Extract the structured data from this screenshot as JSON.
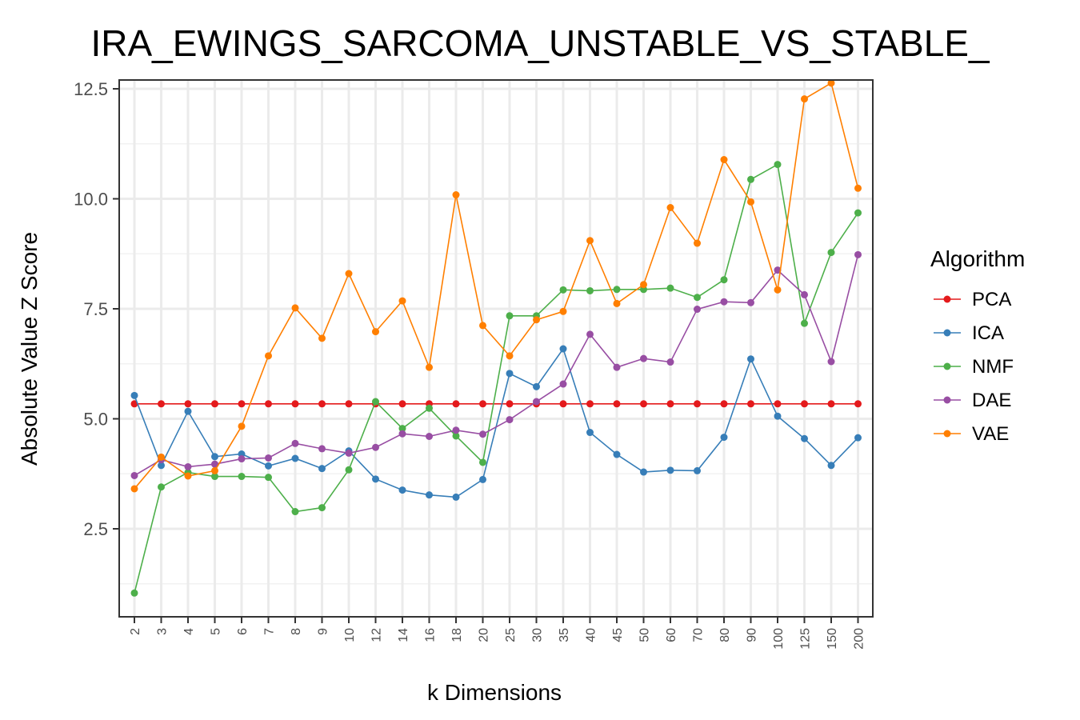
{
  "chart_data": {
    "type": "line",
    "title": "IRA_EWINGS_SARCOMA_UNSTABLE_VS_STABLE_",
    "xlabel": "k Dimensions",
    "ylabel": "Absolute Value Z Score",
    "categories": [
      "2",
      "3",
      "4",
      "5",
      "6",
      "7",
      "8",
      "9",
      "10",
      "12",
      "14",
      "16",
      "18",
      "20",
      "25",
      "30",
      "35",
      "40",
      "45",
      "50",
      "60",
      "70",
      "80",
      "90",
      "100",
      "125",
      "150",
      "200"
    ],
    "yticks": [
      "2.5",
      "5.0",
      "7.5",
      "10.0",
      "12.5"
    ],
    "ylim": [
      0.5,
      12.7
    ],
    "grid": true,
    "legend": {
      "title": "Algorithm",
      "position": "right"
    },
    "series": [
      {
        "name": "PCA",
        "color": "#e41a1c",
        "values": [
          5.34,
          5.34,
          5.34,
          5.34,
          5.34,
          5.34,
          5.34,
          5.34,
          5.34,
          5.34,
          5.34,
          5.34,
          5.34,
          5.34,
          5.34,
          5.34,
          5.34,
          5.34,
          5.34,
          5.34,
          5.34,
          5.34,
          5.34,
          5.34,
          5.34,
          5.34,
          5.34,
          5.34
        ]
      },
      {
        "name": "ICA",
        "color": "#377eb8",
        "values": [
          5.53,
          3.94,
          5.17,
          4.14,
          4.2,
          3.93,
          4.1,
          3.87,
          4.27,
          3.63,
          3.38,
          3.27,
          3.22,
          3.62,
          6.03,
          5.73,
          6.59,
          4.69,
          4.19,
          3.79,
          3.83,
          3.82,
          4.58,
          6.36,
          5.06,
          4.55,
          3.94,
          4.57
        ]
      },
      {
        "name": "NMF",
        "color": "#4daf4a",
        "values": [
          1.04,
          3.45,
          3.78,
          3.69,
          3.69,
          3.67,
          2.89,
          2.98,
          3.84,
          5.39,
          4.78,
          5.24,
          4.61,
          4.01,
          7.34,
          7.34,
          7.93,
          7.91,
          7.94,
          7.94,
          7.97,
          7.76,
          8.16,
          10.44,
          10.78,
          7.17,
          8.78,
          9.68
        ]
      },
      {
        "name": "DAE",
        "color": "#984ea3",
        "values": [
          3.71,
          4.07,
          3.91,
          3.97,
          4.09,
          4.11,
          4.44,
          4.32,
          4.22,
          4.35,
          4.66,
          4.6,
          4.74,
          4.65,
          4.98,
          5.39,
          5.79,
          6.92,
          6.17,
          6.37,
          6.29,
          7.49,
          7.66,
          7.64,
          8.38,
          7.82,
          6.3,
          8.73
        ]
      },
      {
        "name": "VAE",
        "color": "#ff7f00",
        "values": [
          3.41,
          4.13,
          3.7,
          3.82,
          4.83,
          6.43,
          7.52,
          6.83,
          8.3,
          6.98,
          7.68,
          6.17,
          10.09,
          7.12,
          6.43,
          7.25,
          7.44,
          9.05,
          7.62,
          8.05,
          9.8,
          8.99,
          10.89,
          9.93,
          7.93,
          12.27,
          12.63,
          10.24
        ]
      }
    ]
  }
}
